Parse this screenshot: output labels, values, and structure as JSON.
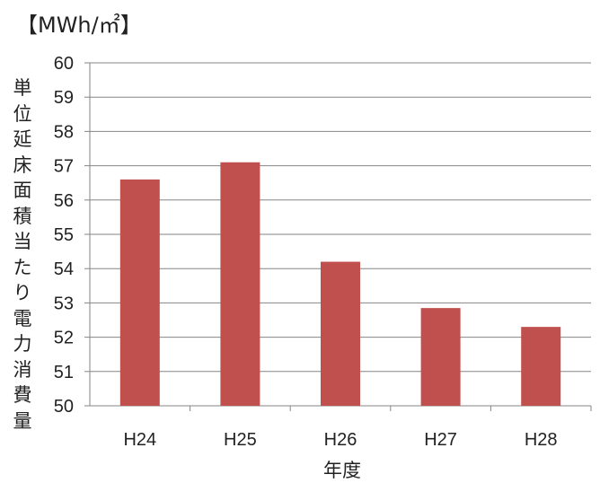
{
  "chart_data": {
    "type": "bar",
    "unit_label": "【MWh/㎡】",
    "ylabel": "単位延床面積当たり電力消費量",
    "xlabel": "年度",
    "categories": [
      "H24",
      "H25",
      "H26",
      "H27",
      "H28"
    ],
    "values": [
      56.6,
      57.1,
      54.2,
      52.85,
      52.3
    ],
    "ylim": [
      50,
      60
    ],
    "yticks": [
      50,
      51,
      52,
      53,
      54,
      55,
      56,
      57,
      58,
      59,
      60
    ],
    "grid": true,
    "bar_color": "#c0504d",
    "grid_color": "#868686"
  }
}
